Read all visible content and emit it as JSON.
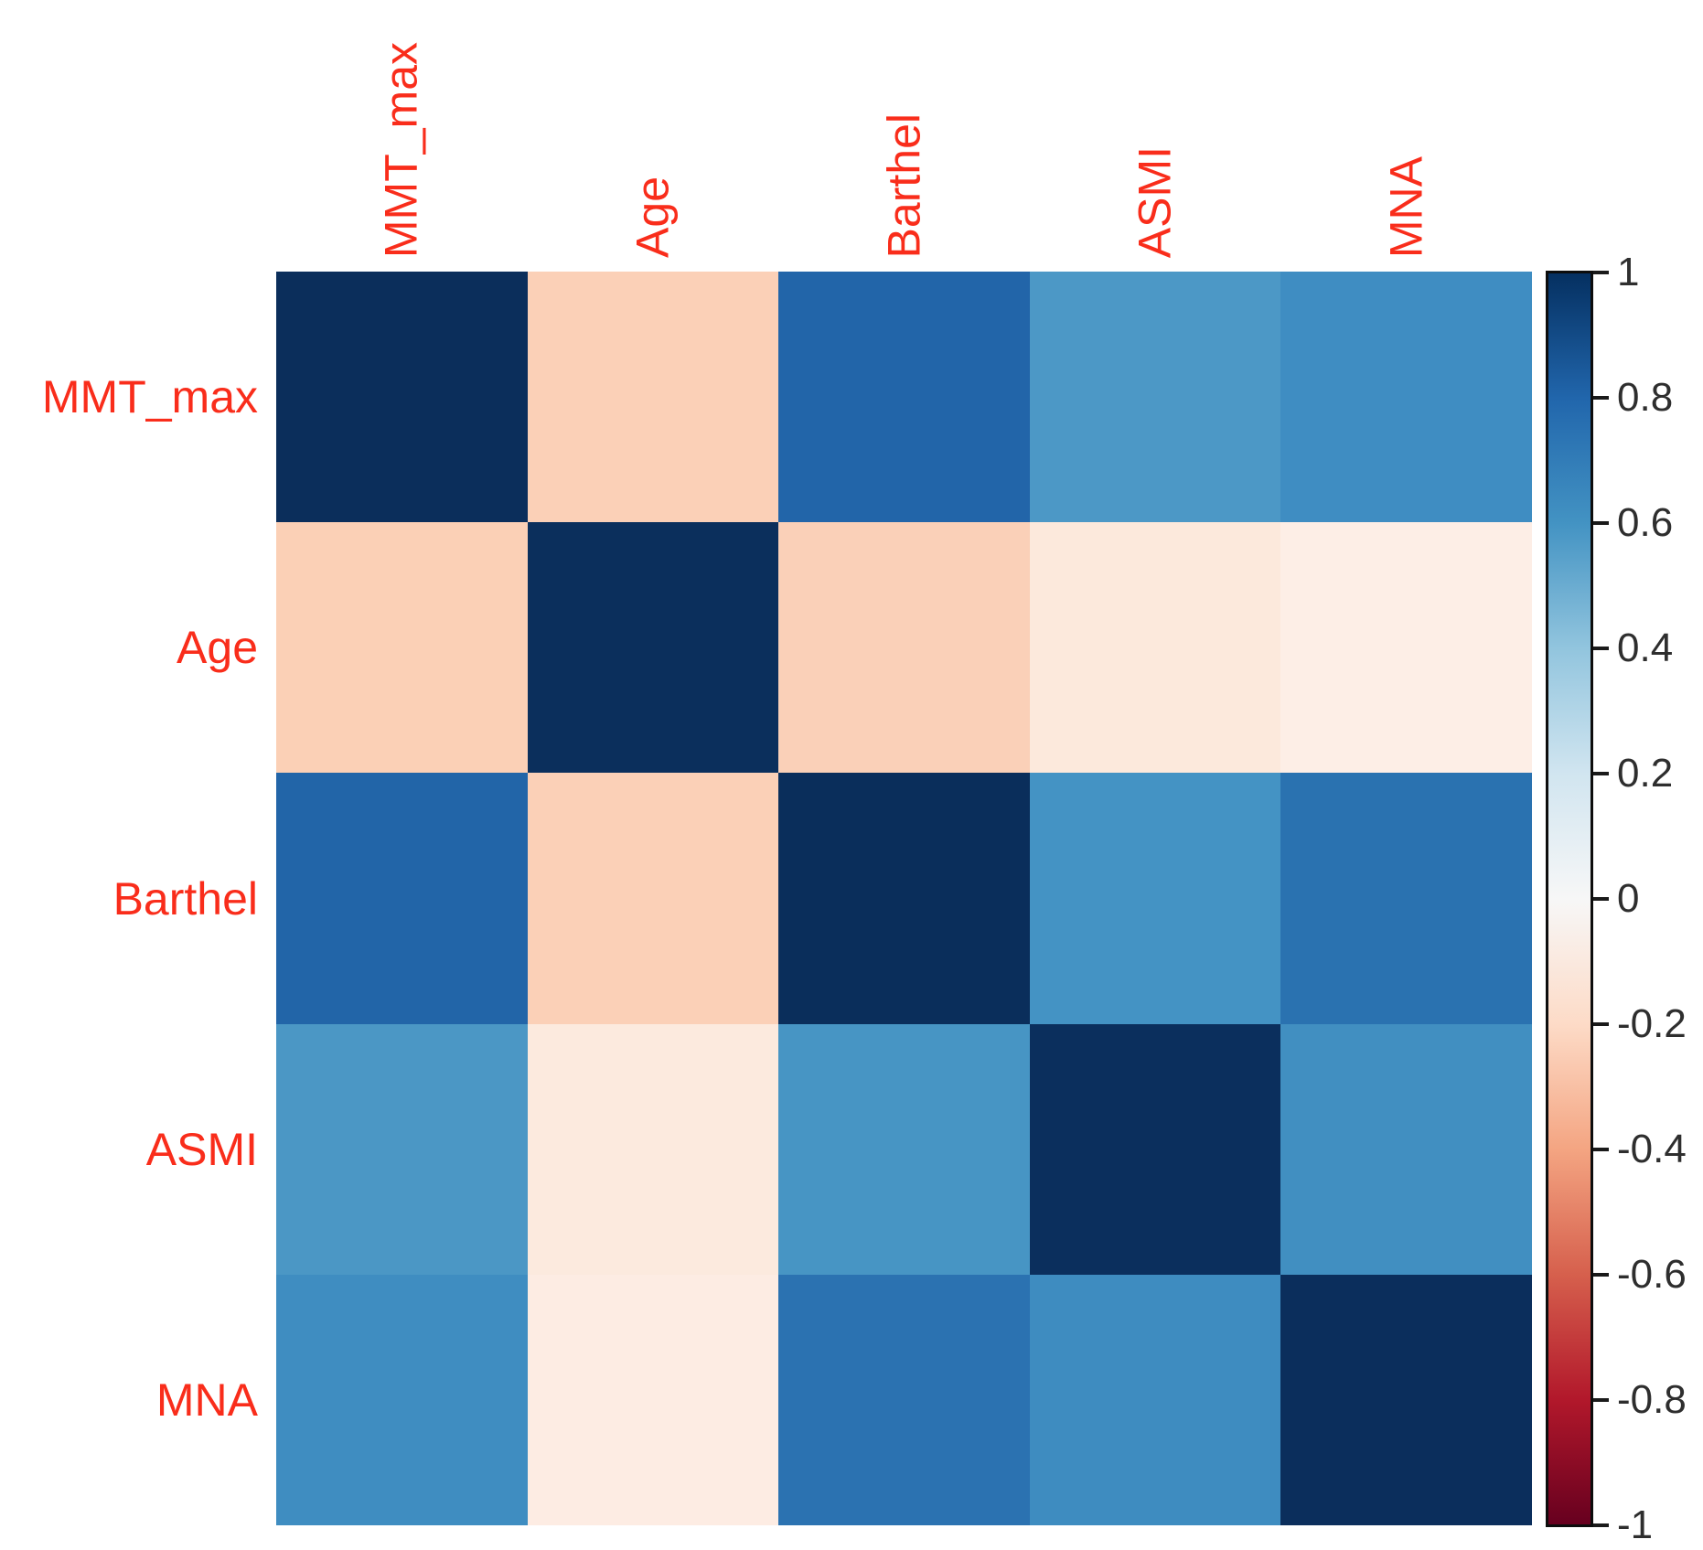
{
  "figure": {
    "background": "#ffffff",
    "axis_label_color": "#f92d1b",
    "tick_label_color": "#2e2e2e"
  },
  "chart_data": {
    "type": "heatmap",
    "title": "",
    "xlabel": "",
    "ylabel": "",
    "grid": false,
    "legend_position": "right",
    "variables": [
      "MMT_max",
      "Age",
      "Barthel",
      "ASMI",
      "MNA"
    ],
    "matrix": [
      [
        1.0,
        -0.25,
        0.77,
        0.57,
        0.62
      ],
      [
        -0.25,
        1.0,
        -0.26,
        -0.09,
        -0.06
      ],
      [
        0.77,
        -0.26,
        1.0,
        0.6,
        0.73
      ],
      [
        0.57,
        -0.09,
        0.6,
        1.0,
        0.61
      ],
      [
        0.62,
        -0.06,
        0.73,
        0.61,
        1.0
      ]
    ],
    "cell_colors": [
      [
        "#0b2e5b",
        "#fbd0b7",
        "#2265a9",
        "#4c98c6",
        "#3f8dc2"
      ],
      [
        "#fbd0b6",
        "#0b2f5c",
        "#fad0b8",
        "#fce9dc",
        "#fdeee6"
      ],
      [
        "#2265a8",
        "#fbd0b7",
        "#0a2e5b",
        "#4493c4",
        "#2a72b0"
      ],
      [
        "#4b97c5",
        "#fceade",
        "#4795c4",
        "#0b2f5d",
        "#418fc1"
      ],
      [
        "#3f8dc1",
        "#fdece3",
        "#2b72b1",
        "#3e8cc0",
        "#0b2e5c"
      ]
    ],
    "colorbar": {
      "range": [
        -1,
        1
      ],
      "colormap": "RdBu",
      "ticks": [
        "1",
        "0.8",
        "0.6",
        "0.4",
        "0.2",
        "0",
        "-0.2",
        "-0.4",
        "-0.6",
        "-0.8",
        "-1"
      ],
      "gradient": [
        "#053061",
        "#2166ac",
        "#4393c3",
        "#92c5de",
        "#d1e5f0",
        "#f7f7f7",
        "#fddbc7",
        "#f4a582",
        "#d6604d",
        "#b2182b",
        "#67001f"
      ]
    }
  }
}
